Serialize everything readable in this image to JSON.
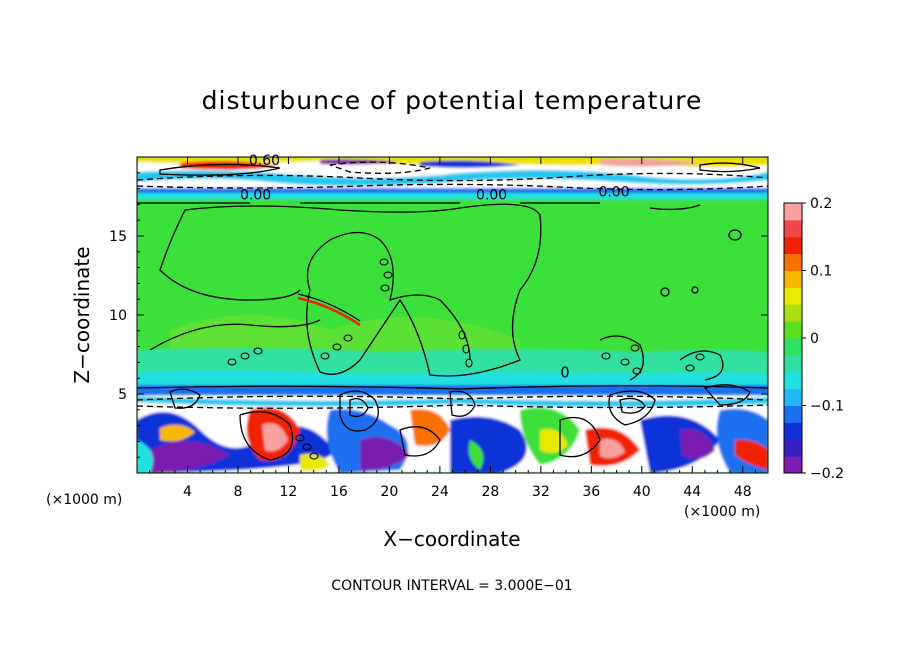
{
  "chart_data": {
    "type": "heatmap",
    "title": "disturbunce of potential temperature",
    "xlabel": "X−coordinate",
    "ylabel": "Z−coordinate",
    "x_unit": "(×1000 m)",
    "y_unit": "(×1000 m)",
    "xlim": [
      0,
      50
    ],
    "ylim": [
      0,
      20
    ],
    "x_ticks": [
      4,
      8,
      12,
      16,
      20,
      24,
      28,
      32,
      36,
      40,
      44,
      48
    ],
    "y_ticks": [
      5,
      10,
      15
    ],
    "colorbar": {
      "min": -0.2,
      "max": 0.2,
      "ticks": [
        -0.2,
        -0.1,
        0,
        0.1,
        0.2
      ],
      "tick_labels": [
        "−0.2",
        "−0.1",
        "0",
        "0.1",
        "0.2"
      ],
      "colors": [
        "#7a1fb0",
        "#3a1fc0",
        "#1030d8",
        "#1a70f0",
        "#20b8f8",
        "#20e0e0",
        "#30e0a0",
        "#30e060",
        "#5ae020",
        "#a8e010",
        "#e8e800",
        "#f8b800",
        "#f87000",
        "#f02000",
        "#f04848",
        "#f8a0a0"
      ]
    },
    "contour_labels": [
      {
        "text": "0.00",
        "x": 9.4,
        "z": 17.3
      },
      {
        "text": "0.00",
        "x": 28.1,
        "z": 17.3
      },
      {
        "text": "0.00",
        "x": 37.8,
        "z": 17.5
      },
      {
        "text": "0.60",
        "x": 10.1,
        "z": 19.5
      }
    ],
    "annotation": "CONTOUR INTERVAL = 3.000E−01"
  }
}
